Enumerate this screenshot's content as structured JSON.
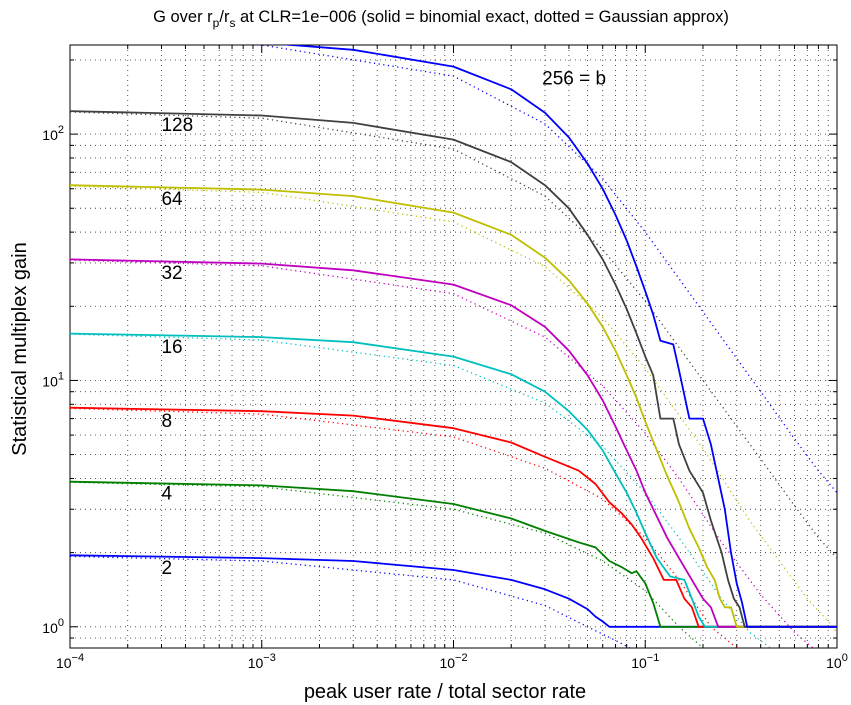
{
  "chart_data": {
    "type": "line",
    "title": {
      "prefix": "G over r",
      "sub_p": "p",
      "slash": "/r",
      "sub_s": "s",
      "suffix": " at CLR=1e−006   (solid = binomial exact, dotted = Gaussian approx)"
    },
    "xlabel": "peak user rate / total sector rate",
    "ylabel": "Statistical multiplex gain",
    "x_scale": "log",
    "y_scale": "log",
    "xlim": [
      0.0001,
      1
    ],
    "ylim": [
      0.82,
      230
    ],
    "x_ticks": [
      {
        "value": 0.0001,
        "base": "10",
        "exp": "−4"
      },
      {
        "value": 0.001,
        "base": "10",
        "exp": "−3"
      },
      {
        "value": 0.01,
        "base": "10",
        "exp": "−2"
      },
      {
        "value": 0.1,
        "base": "10",
        "exp": "−1"
      },
      {
        "value": 1,
        "base": "10",
        "exp": "0"
      }
    ],
    "y_ticks": [
      {
        "value": 1,
        "base": "10",
        "exp": "0"
      },
      {
        "value": 10,
        "base": "10",
        "exp": "1"
      },
      {
        "value": 100,
        "base": "10",
        "exp": "2"
      }
    ],
    "grid": true,
    "series": [
      {
        "name": "2",
        "color": "#0000ff",
        "exact": [
          [
            0.0001,
            1.95
          ],
          [
            0.001,
            1.9
          ],
          [
            0.003,
            1.85
          ],
          [
            0.01,
            1.7
          ],
          [
            0.02,
            1.55
          ],
          [
            0.03,
            1.42
          ],
          [
            0.04,
            1.3
          ],
          [
            0.05,
            1.18
          ],
          [
            0.055,
            1.1
          ],
          [
            0.06,
            1.05
          ],
          [
            0.065,
            1.0
          ],
          [
            1,
            1.0
          ]
        ],
        "approx": [
          [
            0.0001,
            1.93
          ],
          [
            0.001,
            1.85
          ],
          [
            0.01,
            1.55
          ],
          [
            0.03,
            1.22
          ],
          [
            0.05,
            1.0
          ],
          [
            0.07,
            0.88
          ],
          [
            0.1,
            0.76
          ]
        ]
      },
      {
        "name": "4",
        "color": "#007f00",
        "exact": [
          [
            0.0001,
            3.88
          ],
          [
            0.001,
            3.75
          ],
          [
            0.003,
            3.55
          ],
          [
            0.01,
            3.15
          ],
          [
            0.02,
            2.75
          ],
          [
            0.03,
            2.45
          ],
          [
            0.045,
            2.2
          ],
          [
            0.055,
            2.1
          ],
          [
            0.065,
            1.85
          ],
          [
            0.075,
            1.75
          ],
          [
            0.085,
            1.65
          ],
          [
            0.09,
            1.68
          ],
          [
            0.1,
            1.5
          ],
          [
            0.11,
            1.25
          ],
          [
            0.12,
            1.0
          ],
          [
            1,
            1.0
          ]
        ],
        "approx": [
          [
            0.0001,
            3.86
          ],
          [
            0.001,
            3.7
          ],
          [
            0.01,
            3.0
          ],
          [
            0.03,
            2.4
          ],
          [
            0.06,
            1.85
          ],
          [
            0.1,
            1.4
          ],
          [
            0.15,
            1.0
          ],
          [
            0.2,
            0.82
          ]
        ]
      },
      {
        "name": "8",
        "color": "#ff0000",
        "exact": [
          [
            0.0001,
            7.75
          ],
          [
            0.001,
            7.5
          ],
          [
            0.003,
            7.2
          ],
          [
            0.01,
            6.4
          ],
          [
            0.02,
            5.6
          ],
          [
            0.03,
            4.9
          ],
          [
            0.045,
            4.3
          ],
          [
            0.055,
            3.8
          ],
          [
            0.065,
            3.2
          ],
          [
            0.075,
            2.9
          ],
          [
            0.085,
            2.6
          ],
          [
            0.095,
            2.3
          ],
          [
            0.11,
            1.9
          ],
          [
            0.125,
            1.55
          ],
          [
            0.145,
            1.55
          ],
          [
            0.16,
            1.3
          ],
          [
            0.175,
            1.2
          ],
          [
            0.19,
            1.0
          ],
          [
            1,
            1.0
          ]
        ],
        "approx": [
          [
            0.0001,
            7.7
          ],
          [
            0.001,
            7.3
          ],
          [
            0.01,
            5.9
          ],
          [
            0.03,
            4.4
          ],
          [
            0.06,
            3.3
          ],
          [
            0.1,
            2.3
          ],
          [
            0.15,
            1.55
          ],
          [
            0.22,
            1.0
          ],
          [
            0.3,
            0.82
          ]
        ]
      },
      {
        "name": "16",
        "color": "#00bfbf",
        "exact": [
          [
            0.0001,
            15.5
          ],
          [
            0.001,
            15.0
          ],
          [
            0.003,
            14.3
          ],
          [
            0.01,
            12.5
          ],
          [
            0.02,
            10.6
          ],
          [
            0.03,
            9.0
          ],
          [
            0.04,
            7.5
          ],
          [
            0.05,
            6.3
          ],
          [
            0.06,
            5.2
          ],
          [
            0.07,
            4.2
          ],
          [
            0.08,
            3.5
          ],
          [
            0.09,
            2.9
          ],
          [
            0.1,
            2.4
          ],
          [
            0.115,
            1.9
          ],
          [
            0.135,
            1.6
          ],
          [
            0.16,
            1.55
          ],
          [
            0.175,
            1.3
          ],
          [
            0.19,
            1.1
          ],
          [
            0.205,
            1.0
          ],
          [
            1,
            1.0
          ]
        ],
        "approx": [
          [
            0.0001,
            15.4
          ],
          [
            0.001,
            14.6
          ],
          [
            0.01,
            11.5
          ],
          [
            0.03,
            8.1
          ],
          [
            0.06,
            5.4
          ],
          [
            0.1,
            3.5
          ],
          [
            0.15,
            2.3
          ],
          [
            0.25,
            1.3
          ],
          [
            0.35,
            0.95
          ],
          [
            0.45,
            0.82
          ]
        ]
      },
      {
        "name": "32",
        "color": "#bf00bf",
        "exact": [
          [
            0.0001,
            31.0
          ],
          [
            0.001,
            29.8
          ],
          [
            0.003,
            28.0
          ],
          [
            0.01,
            24.5
          ],
          [
            0.02,
            20.2
          ],
          [
            0.03,
            16.5
          ],
          [
            0.04,
            13.2
          ],
          [
            0.05,
            10.5
          ],
          [
            0.06,
            8.3
          ],
          [
            0.07,
            6.5
          ],
          [
            0.08,
            5.2
          ],
          [
            0.09,
            4.3
          ],
          [
            0.1,
            3.5
          ],
          [
            0.115,
            2.8
          ],
          [
            0.13,
            2.3
          ],
          [
            0.15,
            1.9
          ],
          [
            0.175,
            1.55
          ],
          [
            0.2,
            1.3
          ],
          [
            0.22,
            1.2
          ],
          [
            0.24,
            1.0
          ],
          [
            1,
            1.0
          ]
        ],
        "approx": [
          [
            0.0001,
            30.8
          ],
          [
            0.001,
            29.2
          ],
          [
            0.01,
            22.5
          ],
          [
            0.03,
            15.0
          ],
          [
            0.06,
            9.5
          ],
          [
            0.1,
            6.1
          ],
          [
            0.15,
            4.0
          ],
          [
            0.25,
            2.2
          ],
          [
            0.4,
            1.35
          ],
          [
            0.6,
            0.95
          ],
          [
            0.75,
            0.82
          ]
        ]
      },
      {
        "name": "64",
        "color": "#bfbf00",
        "exact": [
          [
            0.0001,
            62.0
          ],
          [
            0.001,
            59.5
          ],
          [
            0.003,
            56.0
          ],
          [
            0.01,
            48.0
          ],
          [
            0.02,
            39.0
          ],
          [
            0.03,
            31.5
          ],
          [
            0.04,
            25.5
          ],
          [
            0.05,
            20.5
          ],
          [
            0.06,
            16.5
          ],
          [
            0.07,
            13.2
          ],
          [
            0.08,
            10.5
          ],
          [
            0.09,
            8.5
          ],
          [
            0.1,
            6.8
          ],
          [
            0.115,
            5.2
          ],
          [
            0.13,
            4.1
          ],
          [
            0.15,
            3.2
          ],
          [
            0.17,
            2.5
          ],
          [
            0.19,
            2.1
          ],
          [
            0.21,
            1.75
          ],
          [
            0.23,
            1.55
          ],
          [
            0.245,
            1.3
          ],
          [
            0.26,
            1.2
          ],
          [
            0.28,
            1.2
          ],
          [
            0.3,
            1.0
          ],
          [
            1,
            1.0
          ]
        ],
        "approx": [
          [
            0.0001,
            61.5
          ],
          [
            0.001,
            58.0
          ],
          [
            0.01,
            44.0
          ],
          [
            0.03,
            29.0
          ],
          [
            0.06,
            18.0
          ],
          [
            0.1,
            11.2
          ],
          [
            0.2,
            5.3
          ],
          [
            0.35,
            2.7
          ],
          [
            0.5,
            1.85
          ],
          [
            0.7,
            1.3
          ],
          [
            0.9,
            1.05
          ],
          [
            1.0,
            0.95
          ]
        ]
      },
      {
        "name": "128",
        "color": "#404040",
        "exact": [
          [
            0.0001,
            124.0
          ],
          [
            0.001,
            119.0
          ],
          [
            0.003,
            111.0
          ],
          [
            0.01,
            95.0
          ],
          [
            0.02,
            77.0
          ],
          [
            0.03,
            62.0
          ],
          [
            0.04,
            50.0
          ],
          [
            0.05,
            39.0
          ],
          [
            0.06,
            31.0
          ],
          [
            0.07,
            24.5
          ],
          [
            0.08,
            19.5
          ],
          [
            0.09,
            15.5
          ],
          [
            0.1,
            12.5
          ],
          [
            0.11,
            10.5
          ],
          [
            0.12,
            7.0
          ],
          [
            0.14,
            7.0
          ],
          [
            0.15,
            5.5
          ],
          [
            0.17,
            4.3
          ],
          [
            0.2,
            3.5
          ],
          [
            0.22,
            2.7
          ],
          [
            0.25,
            2.0
          ],
          [
            0.27,
            1.55
          ],
          [
            0.29,
            1.3
          ],
          [
            0.31,
            1.2
          ],
          [
            0.33,
            1.0
          ],
          [
            1,
            1.0
          ]
        ],
        "approx": [
          [
            0.0001,
            123.0
          ],
          [
            0.001,
            116.0
          ],
          [
            0.01,
            87.0
          ],
          [
            0.03,
            56.0
          ],
          [
            0.06,
            34.0
          ],
          [
            0.1,
            21.0
          ],
          [
            0.2,
            10.0
          ],
          [
            0.4,
            4.8
          ],
          [
            0.6,
            3.1
          ],
          [
            0.8,
            2.3
          ],
          [
            1.0,
            1.9
          ]
        ]
      },
      {
        "name": "256 = b",
        "color": "#0000ff",
        "exact": [
          [
            0.0001,
            245.0
          ],
          [
            0.001,
            235.0
          ],
          [
            0.003,
            220.0
          ],
          [
            0.01,
            188.0
          ],
          [
            0.02,
            152.0
          ],
          [
            0.03,
            122.0
          ],
          [
            0.04,
            97.0
          ],
          [
            0.05,
            76.0
          ],
          [
            0.06,
            60.0
          ],
          [
            0.07,
            47.0
          ],
          [
            0.08,
            37.0
          ],
          [
            0.09,
            29.0
          ],
          [
            0.1,
            23.0
          ],
          [
            0.11,
            18.5
          ],
          [
            0.12,
            14.5
          ],
          [
            0.14,
            14.0
          ],
          [
            0.15,
            11.0
          ],
          [
            0.17,
            7.0
          ],
          [
            0.2,
            7.0
          ],
          [
            0.22,
            5.5
          ],
          [
            0.24,
            4.0
          ],
          [
            0.26,
            3.0
          ],
          [
            0.28,
            2.0
          ],
          [
            0.3,
            1.5
          ],
          [
            0.32,
            1.25
          ],
          [
            0.34,
            1.0
          ],
          [
            1,
            1.0
          ]
        ],
        "approx": [
          [
            0.0001,
            244.0
          ],
          [
            0.001,
            230.0
          ],
          [
            0.01,
            172.0
          ],
          [
            0.03,
            110.0
          ],
          [
            0.06,
            66.0
          ],
          [
            0.1,
            40.0
          ],
          [
            0.2,
            19.0
          ],
          [
            0.4,
            9.0
          ],
          [
            0.6,
            5.8
          ],
          [
            0.8,
            4.3
          ],
          [
            1.0,
            3.5
          ]
        ]
      }
    ],
    "annotations": [
      {
        "text": "2",
        "x": 0.0003,
        "y": 1.75
      },
      {
        "text": "4",
        "x": 0.0003,
        "y": 3.5
      },
      {
        "text": "8",
        "x": 0.0003,
        "y": 6.9
      },
      {
        "text": "16",
        "x": 0.0003,
        "y": 13.8
      },
      {
        "text": "32",
        "x": 0.0003,
        "y": 27.5
      },
      {
        "text": "64",
        "x": 0.0003,
        "y": 55
      },
      {
        "text": "128",
        "x": 0.0003,
        "y": 110
      },
      {
        "text": "256 = b",
        "x": 0.029,
        "y": 170
      }
    ]
  }
}
